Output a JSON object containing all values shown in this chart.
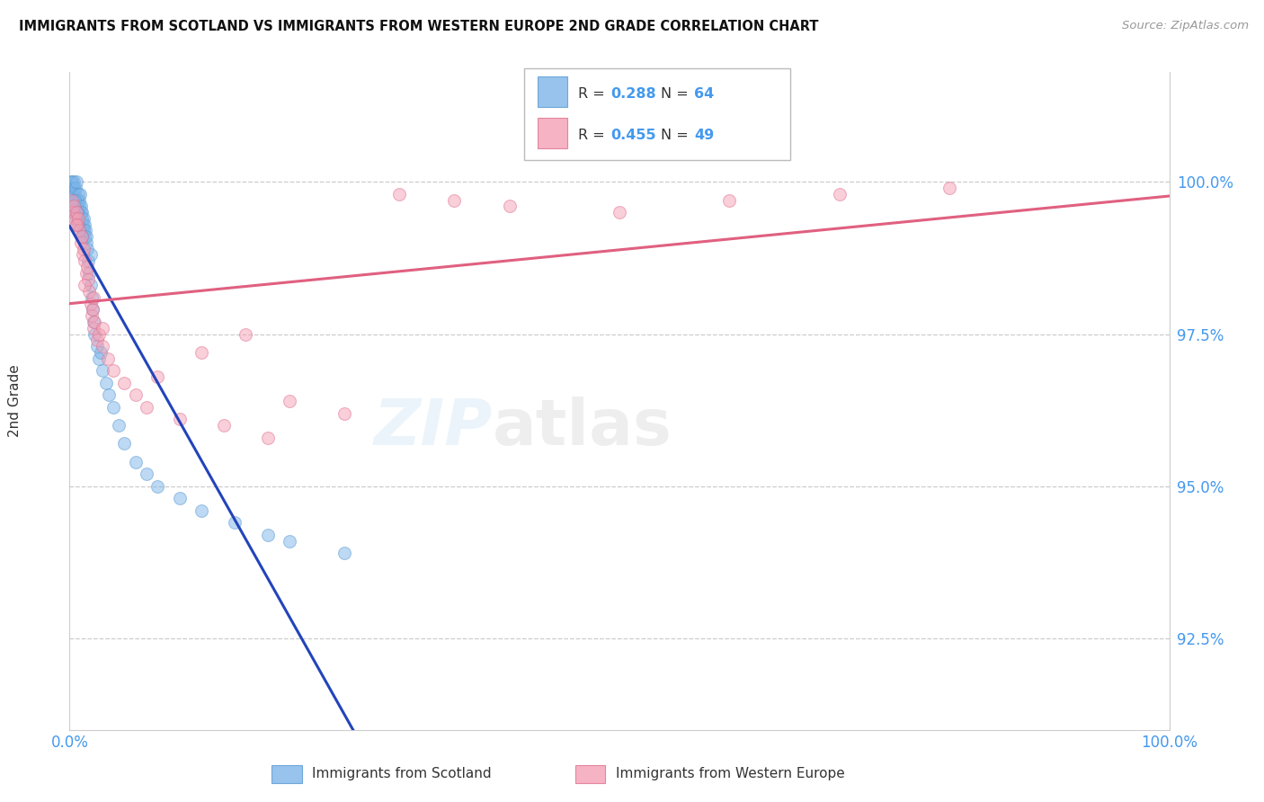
{
  "title": "IMMIGRANTS FROM SCOTLAND VS IMMIGRANTS FROM WESTERN EUROPE 2ND GRADE CORRELATION CHART",
  "source_text": "Source: ZipAtlas.com",
  "ylabel": "2nd Grade",
  "y_ticks": [
    92.5,
    95.0,
    97.5,
    100.0
  ],
  "y_tick_labels": [
    "92.5%",
    "95.0%",
    "97.5%",
    "100.0%"
  ],
  "x_tick_labels": [
    "0.0%",
    "100.0%"
  ],
  "xlim": [
    0.0,
    100.0
  ],
  "ylim": [
    91.0,
    101.8
  ],
  "blue_color": "#7DB5E8",
  "blue_edge_color": "#5A9AD4",
  "blue_trend_color": "#2244BB",
  "pink_color": "#F4A0B5",
  "pink_edge_color": "#E07090",
  "pink_trend_color": "#E06080",
  "blue_R": "0.288",
  "blue_N": "64",
  "pink_R": "0.455",
  "pink_N": "49",
  "blue_label": "Immigrants from Scotland",
  "pink_label": "Immigrants from Western Europe",
  "grid_color": "#CCCCCC",
  "tick_color": "#4499EE",
  "title_color": "#111111",
  "source_color": "#999999",
  "background": "#FFFFFF",
  "blue_x": [
    0.15,
    0.2,
    0.25,
    0.3,
    0.35,
    0.4,
    0.45,
    0.5,
    0.55,
    0.6,
    0.65,
    0.7,
    0.75,
    0.8,
    0.85,
    0.9,
    0.95,
    1.0,
    1.05,
    1.1,
    1.15,
    1.2,
    1.25,
    1.3,
    1.35,
    1.4,
    1.45,
    1.5,
    1.55,
    1.6,
    1.7,
    1.8,
    1.9,
    2.0,
    2.1,
    2.2,
    2.3,
    2.5,
    2.7,
    3.0,
    3.3,
    3.6,
    4.0,
    4.5,
    5.0,
    6.0,
    7.0,
    8.0,
    10.0,
    12.0,
    15.0,
    18.0,
    20.0,
    25.0,
    2.8,
    1.9,
    0.4,
    0.3,
    0.6,
    0.8,
    0.5,
    1.1,
    0.7,
    0.9
  ],
  "blue_y": [
    100.0,
    99.9,
    100.0,
    99.8,
    99.9,
    100.0,
    99.7,
    99.8,
    99.9,
    100.0,
    99.6,
    99.7,
    99.8,
    99.5,
    99.6,
    99.7,
    99.8,
    99.5,
    99.6,
    99.4,
    99.5,
    99.3,
    99.4,
    99.2,
    99.3,
    99.1,
    99.2,
    99.0,
    99.1,
    98.9,
    98.7,
    98.5,
    98.3,
    98.1,
    97.9,
    97.7,
    97.5,
    97.3,
    97.1,
    96.9,
    96.7,
    96.5,
    96.3,
    96.0,
    95.7,
    95.4,
    95.2,
    95.0,
    94.8,
    94.6,
    94.4,
    94.2,
    94.1,
    93.9,
    97.2,
    98.8,
    99.5,
    99.6,
    99.4,
    99.3,
    99.7,
    99.1,
    99.5,
    99.2
  ],
  "pink_x": [
    0.2,
    0.3,
    0.4,
    0.5,
    0.6,
    0.7,
    0.8,
    0.9,
    1.0,
    1.1,
    1.2,
    1.3,
    1.4,
    1.5,
    1.6,
    1.7,
    1.8,
    1.9,
    2.0,
    2.1,
    2.2,
    2.3,
    2.5,
    2.7,
    3.0,
    3.5,
    4.0,
    5.0,
    6.0,
    7.0,
    8.0,
    10.0,
    12.0,
    14.0,
    16.0,
    18.0,
    20.0,
    25.0,
    30.0,
    35.0,
    40.0,
    50.0,
    60.0,
    70.0,
    0.6,
    1.4,
    2.2,
    3.0,
    80.0
  ],
  "pink_y": [
    99.7,
    99.5,
    99.6,
    99.4,
    99.5,
    99.3,
    99.4,
    99.2,
    99.0,
    99.1,
    98.8,
    98.9,
    98.7,
    98.5,
    98.6,
    98.4,
    98.2,
    98.0,
    97.8,
    97.9,
    97.6,
    97.7,
    97.4,
    97.5,
    97.3,
    97.1,
    96.9,
    96.7,
    96.5,
    96.3,
    96.8,
    96.1,
    97.2,
    96.0,
    97.5,
    95.8,
    96.4,
    96.2,
    99.8,
    99.7,
    99.6,
    99.5,
    99.7,
    99.8,
    99.3,
    98.3,
    98.1,
    97.6,
    99.9
  ]
}
